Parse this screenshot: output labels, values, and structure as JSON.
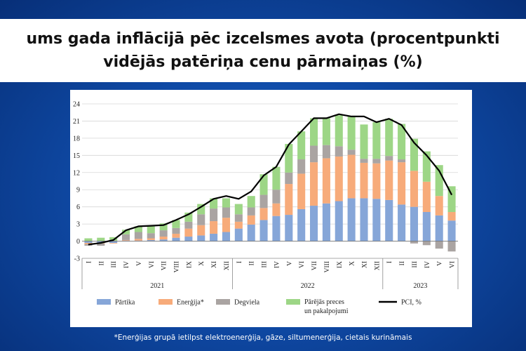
{
  "title": {
    "line1": "ums gada inflācijā pēc izcelsmes avota (procentpunkti",
    "line2": "vidējās patēriņa cenu pārmaiņas (%)"
  },
  "footnote": "*Enerģijas grupā ietilpst elektroenerģija, gāze, siltumenerģija, cietais kurināmais",
  "colors": {
    "food": "#86a6d8",
    "energy": "#f7ab7a",
    "fuel": "#aaa4a2",
    "other": "#9dd686",
    "pci": "#000000"
  },
  "chart_data": {
    "type": "bar",
    "stacked": true,
    "ylim": [
      -3,
      24
    ],
    "yticks": [
      -3,
      0,
      3,
      6,
      9,
      12,
      15,
      18,
      21,
      24
    ],
    "grid": true,
    "legend_position": "bottom",
    "years": [
      {
        "label": "2021",
        "months": 12
      },
      {
        "label": "2022",
        "months": 12
      },
      {
        "label": "2023",
        "months": 6
      }
    ],
    "categories": [
      "I",
      "II",
      "III",
      "IV",
      "V",
      "VI",
      "VII",
      "VIII",
      "IX",
      "X",
      "XI",
      "XII",
      "I",
      "II",
      "III",
      "IV",
      "V",
      "VI",
      "VII",
      "VIII",
      "IX",
      "X",
      "XI",
      "XII",
      "I",
      "II",
      "III",
      "IV",
      "V",
      "VI"
    ],
    "series": [
      {
        "name": "Pārtika",
        "kind": "bar",
        "values": [
          -0.3,
          -0.3,
          -0.3,
          0.1,
          0.1,
          0.2,
          0.3,
          0.6,
          0.8,
          1.0,
          1.3,
          1.6,
          2.2,
          2.9,
          3.7,
          4.4,
          4.6,
          5.6,
          6.2,
          6.6,
          7.0,
          7.5,
          7.5,
          7.4,
          7.2,
          6.4,
          6.0,
          5.1,
          4.5,
          3.6
        ]
      },
      {
        "name": "Enerģija*",
        "kind": "bar",
        "values": [
          -0.2,
          -0.1,
          -0.1,
          0.1,
          0.3,
          0.3,
          0.5,
          0.7,
          1.4,
          1.8,
          2.2,
          2.5,
          1.2,
          1.6,
          2.1,
          2.2,
          5.4,
          6.2,
          7.6,
          7.9,
          7.8,
          7.6,
          6.2,
          6.2,
          6.9,
          7.4,
          6.3,
          5.3,
          3.4,
          1.5
        ]
      },
      {
        "name": "Degviela",
        "kind": "bar",
        "values": [
          -0.3,
          -0.4,
          0.1,
          1.0,
          1.2,
          0.9,
          1.1,
          1.0,
          1.2,
          1.9,
          2.2,
          1.8,
          1.3,
          1.4,
          2.3,
          2.4,
          2.0,
          2.5,
          2.9,
          2.3,
          1.8,
          0.9,
          0.7,
          0.8,
          0.8,
          0.5,
          -0.4,
          -0.7,
          -1.3,
          -1.8
        ]
      },
      {
        "name": "Pārējās preces un pakalpojumi",
        "kind": "bar",
        "values": [
          0.5,
          0.6,
          0.6,
          0.8,
          1.0,
          1.2,
          1.2,
          1.4,
          1.6,
          1.8,
          1.8,
          1.6,
          1.8,
          2.0,
          3.6,
          4.0,
          5.0,
          4.9,
          4.8,
          4.7,
          5.4,
          5.8,
          6.0,
          6.4,
          6.5,
          6.2,
          5.6,
          5.3,
          5.4,
          4.5
        ]
      },
      {
        "name": "PCI, %",
        "kind": "line",
        "values": [
          -0.6,
          -0.3,
          0.2,
          1.9,
          2.6,
          2.7,
          2.8,
          3.7,
          4.7,
          6.0,
          7.4,
          7.9,
          7.4,
          8.7,
          11.5,
          13.0,
          16.9,
          19.2,
          21.5,
          21.5,
          22.2,
          21.8,
          21.8,
          20.8,
          21.4,
          20.3,
          17.2,
          15.0,
          12.3,
          8.1
        ]
      }
    ]
  }
}
